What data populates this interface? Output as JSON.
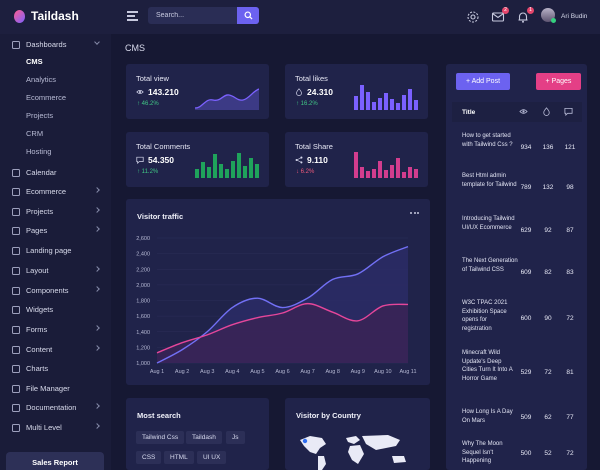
{
  "app": {
    "name": "Taildash",
    "user_name": "Ari Budin"
  },
  "header": {
    "search_placeholder": "Search...",
    "icons": [
      "hamburger-icon",
      "search-icon",
      "gear-icon",
      "mail-icon",
      "bell-icon"
    ],
    "mail_badge": "2",
    "bell_badge": "1"
  },
  "sidebar": {
    "items": [
      {
        "label": "Dashboards",
        "icon": "dashboard-icon",
        "expanded": true
      },
      {
        "label": "Calendar",
        "icon": "calendar-icon"
      },
      {
        "label": "Ecommerce",
        "icon": "cart-icon"
      },
      {
        "label": "Projects",
        "icon": "folder-icon"
      },
      {
        "label": "Pages",
        "icon": "pages-icon"
      },
      {
        "label": "Landing page",
        "icon": "landing-icon"
      },
      {
        "label": "Layout",
        "icon": "layout-icon"
      },
      {
        "label": "Components",
        "icon": "components-icon"
      },
      {
        "label": "Widgets",
        "icon": "widgets-icon"
      },
      {
        "label": "Forms",
        "icon": "forms-icon"
      },
      {
        "label": "Content",
        "icon": "content-icon"
      },
      {
        "label": "Charts",
        "icon": "charts-icon"
      },
      {
        "label": "File Manager",
        "icon": "file-icon"
      },
      {
        "label": "Documentation",
        "icon": "doc-icon"
      },
      {
        "label": "Multi Level",
        "icon": "multilevel-icon"
      }
    ],
    "sub_items": [
      "CMS",
      "Analytics",
      "Ecommerce",
      "Projects",
      "CRM",
      "Hosting"
    ],
    "sales_report": "Sales Report"
  },
  "page": {
    "title": "CMS"
  },
  "stats": [
    {
      "label": "Total view",
      "value": "143.210",
      "change": "46.2%",
      "direction": "up",
      "chart_type": "line",
      "color": "#7b61ff"
    },
    {
      "label": "Total likes",
      "value": "24.310",
      "change": "16.2%",
      "direction": "up",
      "chart_type": "bar",
      "color": "#7b61ff"
    },
    {
      "label": "Total Comments",
      "value": "54.350",
      "change": "11.2%",
      "direction": "up",
      "chart_type": "bar",
      "color": "#1fa35b"
    },
    {
      "label": "Total Share",
      "value": "9.110",
      "change": "6.2%",
      "direction": "down",
      "chart_type": "bar",
      "color": "#d23d8e"
    }
  ],
  "visitor_traffic": {
    "title": "Visitor traffic"
  },
  "chart_data": {
    "type": "line",
    "categories": [
      "Aug 1",
      "Aug 2",
      "Aug 3",
      "Aug 4",
      "Aug 5",
      "Aug 6",
      "Aug 7",
      "Aug 8",
      "Aug 9",
      "Aug 10",
      "Aug 11"
    ],
    "series": [
      {
        "color": "#7270f5",
        "values": [
          1000,
          1170,
          1400,
          1710,
          1830,
          1710,
          1830,
          2070,
          2140,
          2360,
          2490
        ]
      },
      {
        "color": "#e5469a",
        "values": [
          1130,
          1260,
          1360,
          1490,
          1580,
          1640,
          1760,
          1650,
          1540,
          1730,
          1750
        ]
      }
    ],
    "yticks": [
      "2,600",
      "2,400",
      "2,200",
      "2,000",
      "1,800",
      "1,600",
      "1,400",
      "1,200",
      "1,000"
    ],
    "ylim": [
      1000,
      2600
    ],
    "grid": true
  },
  "posts": {
    "add_label": "+ Add Post",
    "pages_label": "+ Pages",
    "title_header": "Title",
    "rows": [
      {
        "title": "How to get started with Tailwind Css ?",
        "views": "934",
        "likes": "136",
        "comments": "121"
      },
      {
        "title": "Best Html admin template for Tailwind",
        "views": "789",
        "likes": "132",
        "comments": "98"
      },
      {
        "title": "Introducing Tailwind UI/UX Ecommerce",
        "views": "629",
        "likes": "92",
        "comments": "87"
      },
      {
        "title": "The Next Generation of Tailwind CSS",
        "views": "609",
        "likes": "82",
        "comments": "83"
      },
      {
        "title": "W3C TPAC 2021 Exhibition Space opens for registration",
        "views": "600",
        "likes": "90",
        "comments": "72"
      },
      {
        "title": "Minecraft Wild Update's Deep Cities Turn It Into A Horror Game",
        "views": "529",
        "likes": "72",
        "comments": "81"
      },
      {
        "title": "How Long Is A Day On Mars",
        "views": "509",
        "likes": "62",
        "comments": "77"
      },
      {
        "title": "Why The Moon Sequel Isn't Happening",
        "views": "500",
        "likes": "52",
        "comments": "72"
      }
    ]
  },
  "most_search": {
    "title": "Most search",
    "tags": [
      "Tailwind Css",
      "Taildash",
      "Js",
      "CSS",
      "HTML",
      "UI UX"
    ]
  },
  "visitor_country": {
    "title": "Visitor by Country"
  }
}
